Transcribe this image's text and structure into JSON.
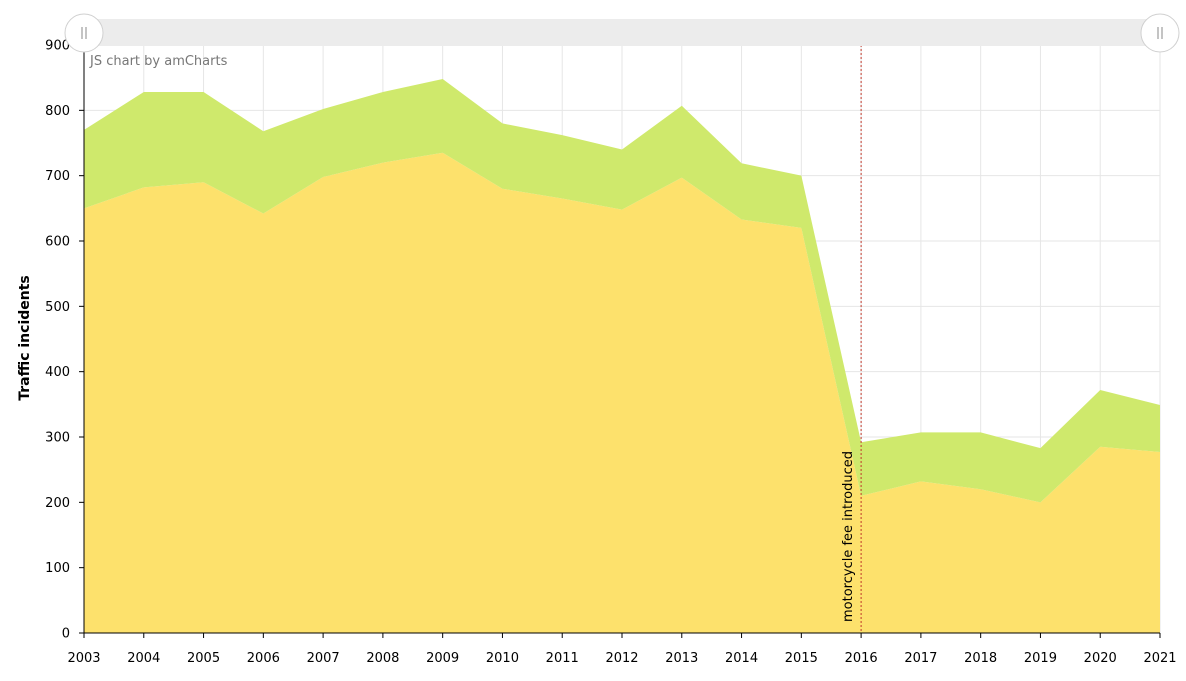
{
  "chart_data": {
    "type": "area",
    "stacked": true,
    "watermark": "JS chart by amCharts",
    "ylabel": "Traffic incidents",
    "xlabel": "",
    "ylim": [
      0,
      900
    ],
    "y_ticks": [
      0,
      100,
      200,
      300,
      400,
      500,
      600,
      700,
      800,
      900
    ],
    "grid": true,
    "legend": "none",
    "categories": [
      "2003",
      "2004",
      "2005",
      "2006",
      "2007",
      "2008",
      "2009",
      "2010",
      "2011",
      "2012",
      "2013",
      "2014",
      "2015",
      "2016",
      "2017",
      "2018",
      "2019",
      "2020",
      "2021"
    ],
    "series": [
      {
        "color": "#fde16c",
        "values": [
          650,
          682,
          690,
          642,
          698,
          720,
          735,
          680,
          665,
          648,
          697,
          633,
          620,
          210,
          232,
          220,
          200,
          285,
          277
        ]
      },
      {
        "color": "#cfe96c",
        "values": [
          120,
          146,
          138,
          126,
          104,
          108,
          113,
          100,
          97,
          92,
          110,
          86,
          80,
          82,
          75,
          87,
          83,
          87,
          72
        ]
      }
    ],
    "annotations": [
      {
        "type": "vertical-line",
        "x": "2016",
        "label": "motorcycle fee introduced",
        "color": "#c0392b"
      }
    ],
    "scrollbar": true
  }
}
